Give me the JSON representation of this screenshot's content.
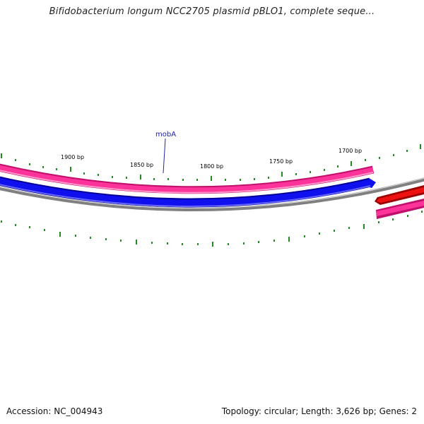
{
  "header": {
    "title": "Bifidobacterium longum NCC2705 plasmid pBLO1, complete seque..."
  },
  "footer": {
    "accession": "Accession: NC_004943",
    "summary": "Topology: circular; Length: 3,626 bp; Genes: 2"
  },
  "map": {
    "tick_labels": [
      "1900 bp",
      "1850 bp",
      "1800 bp",
      "1750 bp",
      "1700 bp"
    ],
    "gene_label": "mobA",
    "colors": {
      "forward_track": "#ff3399",
      "forward_track_edge": "#c0106c",
      "reverse_track": "#1010ee",
      "reverse_track_edge": "#000099",
      "backbone": "#808080",
      "gene_red": "#ee1111",
      "tick": "#228b22",
      "label_line": "#2222aa"
    }
  }
}
